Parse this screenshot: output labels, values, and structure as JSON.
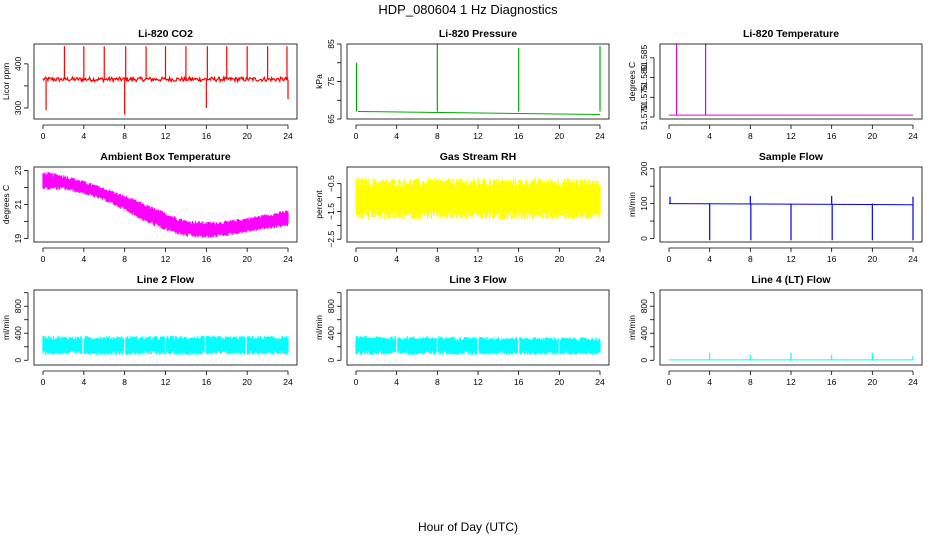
{
  "figure": {
    "title": "HDP_080604  1 Hz Diagnostics",
    "xlabel": "Hour of Day (UTC)"
  },
  "chart_data": [
    {
      "type": "line",
      "title": "Li-820 CO2",
      "ylabel": "Licor ppm",
      "color": "#ff0000",
      "xlim": [
        0,
        24
      ],
      "ylim": [
        275,
        445
      ],
      "xticks": [
        0,
        4,
        8,
        12,
        16,
        20,
        24
      ],
      "yticks": [
        300,
        350,
        400
      ],
      "yticklabels": [
        "300",
        "",
        "400"
      ],
      "baseline": 365,
      "noise": 5,
      "spikes": [
        {
          "x": 0.3,
          "y": 295
        },
        {
          "x": 2.1,
          "y": 440
        },
        {
          "x": 4.0,
          "y": 440
        },
        {
          "x": 6.0,
          "y": 440
        },
        {
          "x": 8.0,
          "y": 285
        },
        {
          "x": 8.1,
          "y": 440
        },
        {
          "x": 10.1,
          "y": 440
        },
        {
          "x": 12.0,
          "y": 440
        },
        {
          "x": 14.0,
          "y": 440
        },
        {
          "x": 16.0,
          "y": 300
        },
        {
          "x": 16.1,
          "y": 440
        },
        {
          "x": 18.0,
          "y": 440
        },
        {
          "x": 20.0,
          "y": 440
        },
        {
          "x": 22.0,
          "y": 440
        },
        {
          "x": 23.9,
          "y": 440
        },
        {
          "x": 24.0,
          "y": 320
        }
      ]
    },
    {
      "type": "line",
      "title": "Li-820 Pressure",
      "ylabel": "kPa",
      "color": "#00aa00",
      "xlim": [
        0,
        24
      ],
      "ylim": [
        65,
        85
      ],
      "xticks": [
        0,
        4,
        8,
        12,
        16,
        20,
        24
      ],
      "yticks": [
        65,
        70,
        75,
        80,
        85
      ],
      "yticklabels": [
        "65",
        "",
        "75",
        "",
        "85"
      ],
      "series": [
        {
          "x": [
            0.2,
            24
          ],
          "y": [
            67,
            66.2
          ]
        }
      ],
      "spikes": [
        {
          "x": 0.05,
          "y": 80
        },
        {
          "x": 8.0,
          "y": 85
        },
        {
          "x": 16.0,
          "y": 84
        },
        {
          "x": 24.0,
          "y": 84.5
        }
      ]
    },
    {
      "type": "line",
      "title": "Li-820 Temperature",
      "ylabel": "degrees C",
      "color": "#dd00dd",
      "xlim": [
        0,
        24
      ],
      "ylim": [
        51.5695,
        51.5885
      ],
      "xticks": [
        0,
        4,
        8,
        12,
        16,
        20,
        24
      ],
      "yticks": [
        51.57,
        51.575,
        51.58,
        51.585
      ],
      "yticklabels": [
        "51.570",
        "51.575",
        "51.580",
        "51.585"
      ],
      "series": [
        {
          "x": [
            0,
            24
          ],
          "y": [
            51.5705,
            51.5705
          ]
        }
      ],
      "spikes": [
        {
          "x": 0.75,
          "y": 51.5885
        },
        {
          "x": 3.6,
          "y": 51.5885
        }
      ]
    },
    {
      "type": "band",
      "title": "Ambient Box Temperature",
      "ylabel": "degrees C",
      "color": "#ff00ff",
      "xlim": [
        0,
        24
      ],
      "ylim": [
        18.8,
        23.2
      ],
      "xticks": [
        0,
        4,
        8,
        12,
        16,
        20,
        24
      ],
      "yticks": [
        19,
        20,
        21,
        22,
        23
      ],
      "yticklabels": [
        "19",
        "",
        "21",
        "",
        "23"
      ],
      "x": [
        0,
        2,
        4,
        6,
        8,
        10,
        12,
        14,
        16,
        18,
        20,
        22,
        24
      ],
      "center": [
        22.4,
        22.3,
        22.0,
        21.6,
        21.1,
        20.5,
        20.0,
        19.6,
        19.5,
        19.6,
        19.8,
        20.0,
        20.2
      ],
      "halfwidth": [
        0.55,
        0.45,
        0.4,
        0.4,
        0.45,
        0.55,
        0.55,
        0.5,
        0.5,
        0.45,
        0.45,
        0.45,
        0.5
      ]
    },
    {
      "type": "band",
      "title": "Gas Stream RH",
      "ylabel": "percent",
      "color": "#ffff00",
      "xlim": [
        0,
        24
      ],
      "ylim": [
        -2.6,
        0.1
      ],
      "xticks": [
        0,
        4,
        8,
        12,
        16,
        20,
        24
      ],
      "yticks": [
        -2.5,
        -2.0,
        -1.5,
        -1.0,
        -0.5
      ],
      "yticklabels": [
        "−2.5",
        "",
        "−1.5",
        "",
        "−0.5"
      ],
      "x": [
        0,
        4,
        8,
        12,
        16,
        20,
        24
      ],
      "center": [
        -1.05,
        -1.05,
        -1.05,
        -1.05,
        -1.05,
        -1.05,
        -1.05
      ],
      "halfwidth": [
        0.75,
        0.75,
        0.75,
        0.75,
        0.75,
        0.75,
        0.75
      ]
    },
    {
      "type": "line",
      "title": "Sample Flow",
      "ylabel": "ml/min",
      "color": "#0000ee",
      "xlim": [
        0,
        24
      ],
      "ylim": [
        -10,
        205
      ],
      "xticks": [
        0,
        4,
        8,
        12,
        16,
        20,
        24
      ],
      "yticks": [
        0,
        50,
        100,
        150,
        200
      ],
      "yticklabels": [
        "0",
        "",
        "100",
        "",
        "200"
      ],
      "series": [
        {
          "x": [
            0,
            24
          ],
          "y": [
            100,
            97
          ]
        }
      ],
      "spikes": [
        {
          "x": 0.1,
          "y": 120
        },
        {
          "x": 4.0,
          "y": -5
        },
        {
          "x": 8.0,
          "y": 122
        },
        {
          "x": 8.05,
          "y": -5
        },
        {
          "x": 12.0,
          "y": -5
        },
        {
          "x": 16.0,
          "y": 122
        },
        {
          "x": 16.05,
          "y": -5
        },
        {
          "x": 20.0,
          "y": -5
        },
        {
          "x": 24.0,
          "y": 120
        },
        {
          "x": 24.0,
          "y": -5
        }
      ]
    },
    {
      "type": "band",
      "title": "Line 2 Flow",
      "ylabel": "ml/min",
      "color": "#00ffff",
      "xlim": [
        0,
        24
      ],
      "ylim": [
        -70,
        1040
      ],
      "xticks": [
        0,
        4,
        8,
        12,
        16,
        20,
        24
      ],
      "yticks": [
        0,
        200,
        400,
        600,
        800,
        1000
      ],
      "yticklabels": [
        "0",
        "",
        "400",
        "",
        "800",
        ""
      ],
      "x": [
        0,
        24
      ],
      "center": [
        220,
        220
      ],
      "halfwidth": [
        140,
        140
      ],
      "gaps": [
        3.9,
        8.0,
        12.0,
        15.9,
        19.9
      ]
    },
    {
      "type": "band",
      "title": "Line 3 Flow",
      "ylabel": "ml/min",
      "color": "#00ffff",
      "xlim": [
        0,
        24
      ],
      "ylim": [
        -70,
        1040
      ],
      "xticks": [
        0,
        4,
        8,
        12,
        16,
        20,
        24
      ],
      "yticks": [
        0,
        200,
        400,
        600,
        800,
        1000
      ],
      "yticklabels": [
        "0",
        "",
        "400",
        "",
        "800",
        ""
      ],
      "x": [
        0,
        24
      ],
      "center": [
        220,
        210
      ],
      "halfwidth": [
        140,
        130
      ],
      "gaps": [
        4.0,
        8.0,
        12.0,
        16.0,
        20.0
      ]
    },
    {
      "type": "line",
      "title": "Line 4 (LT) Flow",
      "ylabel": "ml/min",
      "color": "#00ffff",
      "xlim": [
        0,
        24
      ],
      "ylim": [
        -70,
        1040
      ],
      "xticks": [
        0,
        4,
        8,
        12,
        16,
        20,
        24
      ],
      "yticks": [
        0,
        200,
        400,
        600,
        800,
        1000
      ],
      "yticklabels": [
        "0",
        "",
        "400",
        "",
        "800",
        ""
      ],
      "series": [
        {
          "x": [
            0,
            24
          ],
          "y": [
            5,
            5
          ]
        }
      ],
      "spikes": [
        {
          "x": 4.0,
          "y": 110
        },
        {
          "x": 8.0,
          "y": 80
        },
        {
          "x": 12.0,
          "y": 110
        },
        {
          "x": 16.0,
          "y": 80
        },
        {
          "x": 20.0,
          "y": 110
        },
        {
          "x": 24.0,
          "y": 60
        }
      ]
    }
  ]
}
